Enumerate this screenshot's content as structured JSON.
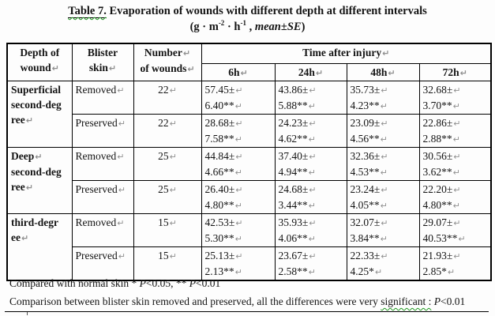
{
  "marks": {
    "br": "↵"
  },
  "title": {
    "label": "Table 7.",
    "rest": " Evaporation of wounds with different depth at different intervals",
    "units_pre": "(g · m",
    "sup1": "-2",
    "units_mid": " · h",
    "sup2": "-1",
    "comma": " , ",
    "stat": "mean±SE",
    "close": ")"
  },
  "table": {
    "headers": {
      "depth_line1": "Depth of",
      "depth_line2": "wound",
      "blister_line1": "Blister",
      "blister_line2": "skin",
      "number_line1": "Number",
      "number_line2": "of wounds",
      "time_span": "Time after injury",
      "times": [
        "6h",
        "24h",
        "48h",
        "72h"
      ]
    },
    "groups": [
      {
        "depth_lines": [
          "Superficial",
          "second-deg",
          "ree"
        ],
        "rows": [
          {
            "skin": "Removed",
            "n": "22",
            "values": [
              [
                "57.45±",
                "6.40**"
              ],
              [
                "43.86±",
                "5.88**"
              ],
              [
                "35.73±",
                "4.23**"
              ],
              [
                "32.68±",
                "3.70**"
              ]
            ]
          },
          {
            "skin": "Preserved",
            "n": "22",
            "values": [
              [
                "28.68±",
                "7.58**"
              ],
              [
                "24.23±",
                "4.62**"
              ],
              [
                "23.09±",
                "4.56**"
              ],
              [
                "22.86±",
                "2.88**"
              ]
            ]
          }
        ]
      },
      {
        "depth_lines": [
          "Deep",
          "second-deg",
          "ree"
        ],
        "rows": [
          {
            "skin": "Removed",
            "n": "25",
            "values": [
              [
                "44.84±",
                "4.66**"
              ],
              [
                "37.40±",
                "4.94**"
              ],
              [
                "32.36±",
                "4.53**"
              ],
              [
                "30.56±",
                "3.62**"
              ]
            ]
          },
          {
            "skin": "Preserved",
            "n": "25",
            "values": [
              [
                "26.40±",
                "4.80**"
              ],
              [
                "24.68±",
                "3.44**"
              ],
              [
                "23.24±",
                "4.05**"
              ],
              [
                "22.20±",
                "4.80**"
              ]
            ]
          }
        ]
      },
      {
        "depth_lines": [
          "third-degr",
          "ee"
        ],
        "rows": [
          {
            "skin": "Removed",
            "n": "15",
            "values": [
              [
                "42.53±",
                "5.30**"
              ],
              [
                "35.93±",
                "4.06**"
              ],
              [
                "32.07±",
                "3.84**"
              ],
              [
                "29.07±",
                "40.53**"
              ]
            ]
          },
          {
            "skin": "Preserved",
            "n": "15",
            "values": [
              [
                "25.13±",
                "2.13**"
              ],
              [
                "23.67±",
                "2.58**"
              ],
              [
                "22.33±",
                "4.25*"
              ],
              [
                "21.93±",
                "2.85*"
              ]
            ]
          }
        ]
      }
    ]
  },
  "notes": {
    "p": "P",
    "n1_pre": "Compared with normal skin * ",
    "n1_mid": "<0.05, ** ",
    "n1_post": "<0.01",
    "n2_pre": "Comparison between blister skin removed and preserved, all the differences were  very ",
    "n2_wavy": "significant :",
    "n2_sep": " ",
    "n2_post": "<0.01"
  }
}
